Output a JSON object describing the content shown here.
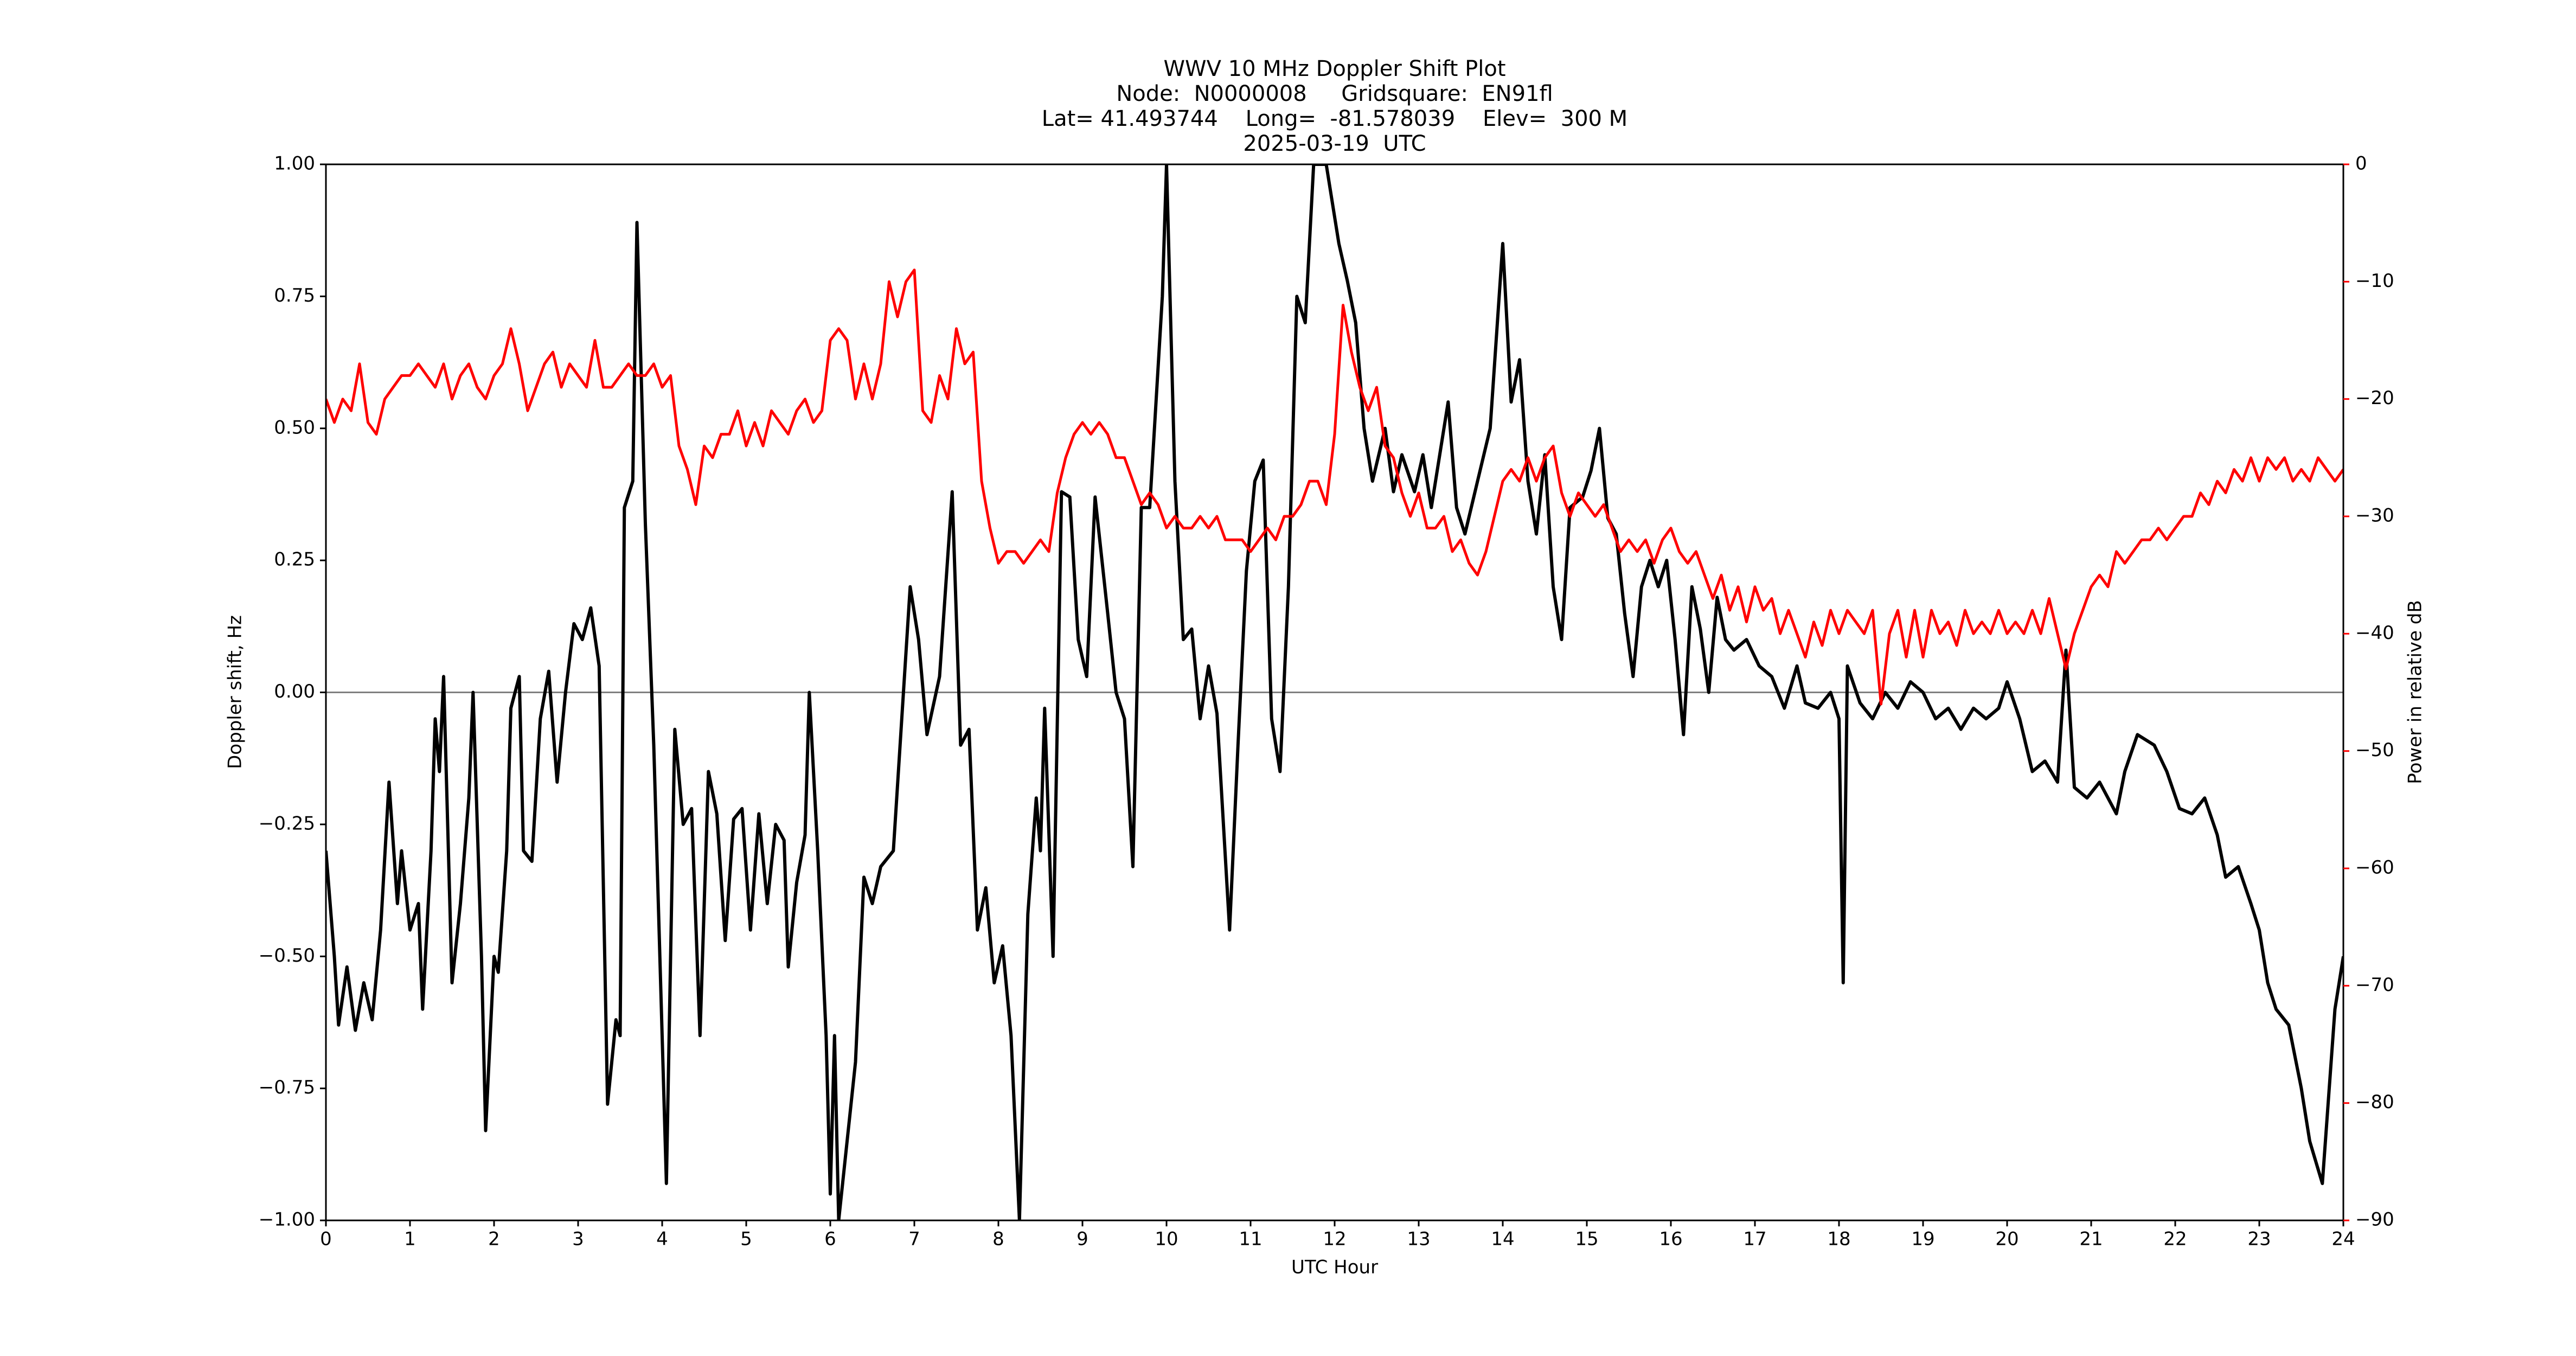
{
  "chart_data": {
    "type": "line",
    "title": "WWV 10 MHz Doppler Shift Plot",
    "subtitle": [
      "Node:  N0000008     Gridsquare:  EN91fl",
      "Lat= 41.493744    Long=  -81.578039    Elev=  300 M",
      "2025-03-19  UTC"
    ],
    "x_label": "UTC Hour",
    "y_label": "Doppler shift, Hz",
    "y2_label": "Power in relative dB",
    "xlim": [
      0,
      24
    ],
    "xticks": [
      0,
      1,
      2,
      3,
      4,
      5,
      6,
      7,
      8,
      9,
      10,
      11,
      12,
      13,
      14,
      15,
      16,
      17,
      18,
      19,
      20,
      21,
      22,
      23,
      24
    ],
    "ylim": [
      -1,
      1
    ],
    "yticks": [
      {
        "value": -1,
        "label": "−1.00"
      },
      {
        "value": -0.75,
        "label": "−0.75"
      },
      {
        "value": -0.5,
        "label": "−0.50"
      },
      {
        "value": -0.25,
        "label": "−0.25"
      },
      {
        "value": 0,
        "label": "0.00"
      },
      {
        "value": 0.25,
        "label": "0.25"
      },
      {
        "value": 0.5,
        "label": "0.50"
      },
      {
        "value": 0.75,
        "label": "0.75"
      },
      {
        "value": 1,
        "label": "1.00"
      }
    ],
    "y2lim": [
      -90,
      0
    ],
    "y2ticks": [
      {
        "value": -90,
        "label": "−90"
      },
      {
        "value": -80,
        "label": "−80"
      },
      {
        "value": -70,
        "label": "−70"
      },
      {
        "value": -60,
        "label": "−60"
      },
      {
        "value": -50,
        "label": "−50"
      },
      {
        "value": -40,
        "label": "−40"
      },
      {
        "value": -30,
        "label": "−30"
      },
      {
        "value": -20,
        "label": "−20"
      },
      {
        "value": -10,
        "label": "−10"
      },
      0
    ],
    "y2_color": "#ff0000",
    "reference_line": 0,
    "grid": false,
    "series": [
      {
        "color": "#000000",
        "x": [
          0,
          0.1,
          0.15,
          0.25,
          0.35,
          0.45,
          0.55,
          0.65,
          0.75,
          0.85,
          0.9,
          1.0,
          1.1,
          1.15,
          1.25,
          1.3,
          1.35,
          1.4,
          1.5,
          1.6,
          1.7,
          1.75,
          1.85,
          1.9,
          2.0,
          2.05,
          2.15,
          2.2,
          2.3,
          2.35,
          2.45,
          2.55,
          2.65,
          2.75,
          2.85,
          2.95,
          3.05,
          3.15,
          3.25,
          3.35,
          3.45,
          3.5,
          3.55,
          3.65,
          3.7,
          3.8,
          3.9,
          4.05,
          4.15,
          4.25,
          4.35,
          4.45,
          4.55,
          4.65,
          4.75,
          4.85,
          4.95,
          5.05,
          5.15,
          5.25,
          5.35,
          5.45,
          5.5,
          5.6,
          5.7,
          5.75,
          5.85,
          5.95,
          6.0,
          6.05,
          6.1,
          6.2,
          6.3,
          6.4,
          6.5,
          6.6,
          6.75,
          6.85,
          6.95,
          7.05,
          7.15,
          7.3,
          7.45,
          7.55,
          7.65,
          7.75,
          7.85,
          7.95,
          8.05,
          8.15,
          8.25,
          8.35,
          8.45,
          8.5,
          8.55,
          8.65,
          8.75,
          8.85,
          8.95,
          9.05,
          9.15,
          9.3,
          9.4,
          9.5,
          9.6,
          9.7,
          9.8,
          9.95,
          10.0,
          10.1,
          10.2,
          10.3,
          10.4,
          10.5,
          10.6,
          10.75,
          10.85,
          10.95,
          11.05,
          11.15,
          11.25,
          11.35,
          11.45,
          11.55,
          11.65,
          11.75,
          11.9,
          12.05,
          12.15,
          12.25,
          12.35,
          12.45,
          12.6,
          12.7,
          12.8,
          12.95,
          13.05,
          13.15,
          13.25,
          13.35,
          13.45,
          13.55,
          13.7,
          13.85,
          14.0,
          14.1,
          14.2,
          14.3,
          14.4,
          14.5,
          14.6,
          14.7,
          14.8,
          14.95,
          15.05,
          15.15,
          15.25,
          15.35,
          15.45,
          15.55,
          15.65,
          15.75,
          15.85,
          15.95,
          16.05,
          16.15,
          16.25,
          16.35,
          16.45,
          16.55,
          16.65,
          16.75,
          16.9,
          17.05,
          17.2,
          17.35,
          17.5,
          17.6,
          17.75,
          17.9,
          18.0,
          18.05,
          18.1,
          18.25,
          18.4,
          18.55,
          18.7,
          18.85,
          19.0,
          19.15,
          19.3,
          19.45,
          19.6,
          19.75,
          19.9,
          20.0,
          20.15,
          20.3,
          20.45,
          20.6,
          20.7,
          20.8,
          20.95,
          21.1,
          21.3,
          21.4,
          21.55,
          21.75,
          21.9,
          22.05,
          22.2,
          22.35,
          22.5,
          22.6,
          22.75,
          22.9,
          23.0,
          23.1,
          23.2,
          23.35,
          23.5,
          23.6,
          23.75,
          23.9,
          24.0
        ],
        "values": [
          -0.3,
          -0.5,
          -0.63,
          -0.52,
          -0.64,
          -0.55,
          -0.62,
          -0.45,
          -0.17,
          -0.4,
          -0.3,
          -0.45,
          -0.4,
          -0.6,
          -0.3,
          -0.05,
          -0.15,
          0.03,
          -0.55,
          -0.4,
          -0.2,
          0.0,
          -0.5,
          -0.83,
          -0.5,
          -0.53,
          -0.3,
          -0.03,
          0.03,
          -0.3,
          -0.32,
          -0.05,
          0.04,
          -0.17,
          0.0,
          0.13,
          0.1,
          0.16,
          0.05,
          -0.78,
          -0.62,
          -0.65,
          0.35,
          0.4,
          0.89,
          0.32,
          -0.1,
          -0.93,
          -0.07,
          -0.25,
          -0.22,
          -0.65,
          -0.15,
          -0.23,
          -0.47,
          -0.24,
          -0.22,
          -0.45,
          -0.23,
          -0.4,
          -0.25,
          -0.28,
          -0.52,
          -0.36,
          -0.27,
          0.0,
          -0.3,
          -0.65,
          -0.95,
          -0.65,
          -1.0,
          -0.85,
          -0.7,
          -0.35,
          -0.4,
          -0.33,
          -0.3,
          -0.05,
          0.2,
          0.1,
          -0.08,
          0.03,
          0.38,
          -0.1,
          -0.07,
          -0.45,
          -0.37,
          -0.55,
          -0.48,
          -0.65,
          -1.0,
          -0.42,
          -0.2,
          -0.3,
          -0.03,
          -0.5,
          0.38,
          0.37,
          0.1,
          0.03,
          0.37,
          0.15,
          0.0,
          -0.05,
          -0.33,
          0.35,
          0.35,
          0.75,
          1.0,
          0.4,
          0.1,
          0.12,
          -0.05,
          0.05,
          -0.04,
          -0.45,
          -0.1,
          0.23,
          0.4,
          0.44,
          -0.05,
          -0.15,
          0.2,
          0.75,
          0.7,
          1.0,
          1.0,
          0.85,
          0.78,
          0.7,
          0.5,
          0.4,
          0.5,
          0.38,
          0.45,
          0.38,
          0.45,
          0.35,
          0.45,
          0.55,
          0.35,
          0.3,
          0.4,
          0.5,
          0.85,
          0.55,
          0.63,
          0.4,
          0.3,
          0.45,
          0.2,
          0.1,
          0.35,
          0.37,
          0.42,
          0.5,
          0.33,
          0.3,
          0.15,
          0.03,
          0.2,
          0.25,
          0.2,
          0.25,
          0.1,
          -0.08,
          0.2,
          0.12,
          0.0,
          0.18,
          0.1,
          0.08,
          0.1,
          0.05,
          0.03,
          -0.03,
          0.05,
          -0.02,
          -0.03,
          0.0,
          -0.05,
          -0.55,
          0.05,
          -0.02,
          -0.05,
          0.0,
          -0.03,
          0.02,
          0.0,
          -0.05,
          -0.03,
          -0.07,
          -0.03,
          -0.05,
          -0.03,
          0.02,
          -0.05,
          -0.15,
          -0.13,
          -0.17,
          0.08,
          -0.18,
          -0.2,
          -0.17,
          -0.23,
          -0.15,
          -0.08,
          -0.1,
          -0.15,
          -0.22,
          -0.23,
          -0.2,
          -0.27,
          -0.35,
          -0.33,
          -0.4,
          -0.45,
          -0.55,
          -0.6,
          -0.63,
          -0.75,
          -0.85,
          -0.93,
          -0.6,
          -0.5
        ]
      },
      {
        "color": "#ff0000",
        "axis": "y2",
        "x": [
          0,
          0.1,
          0.2,
          0.3,
          0.4,
          0.5,
          0.6,
          0.7,
          0.8,
          0.9,
          1,
          1.1,
          1.2,
          1.3,
          1.4,
          1.5,
          1.6,
          1.7,
          1.8,
          1.9,
          2,
          2.1,
          2.2,
          2.3,
          2.4,
          2.5,
          2.6,
          2.7,
          2.8,
          2.9,
          3,
          3.1,
          3.2,
          3.3,
          3.4,
          3.5,
          3.6,
          3.7,
          3.8,
          3.9,
          4,
          4.1,
          4.2,
          4.3,
          4.4,
          4.5,
          4.6,
          4.7,
          4.8,
          4.9,
          5,
          5.1,
          5.2,
          5.3,
          5.4,
          5.5,
          5.6,
          5.7,
          5.8,
          5.9,
          6,
          6.1,
          6.2,
          6.3,
          6.4,
          6.5,
          6.6,
          6.7,
          6.8,
          6.9,
          7,
          7.1,
          7.2,
          7.3,
          7.4,
          7.5,
          7.6,
          7.7,
          7.8,
          7.9,
          8,
          8.1,
          8.2,
          8.3,
          8.4,
          8.5,
          8.6,
          8.7,
          8.8,
          8.9,
          9,
          9.1,
          9.2,
          9.3,
          9.4,
          9.5,
          9.6,
          9.7,
          9.8,
          9.9,
          10,
          10.1,
          10.2,
          10.3,
          10.4,
          10.5,
          10.6,
          10.7,
          10.8,
          10.9,
          11,
          11.1,
          11.2,
          11.3,
          11.4,
          11.5,
          11.6,
          11.7,
          11.8,
          11.9,
          12,
          12.1,
          12.2,
          12.3,
          12.4,
          12.5,
          12.6,
          12.7,
          12.8,
          12.9,
          13,
          13.1,
          13.2,
          13.3,
          13.4,
          13.5,
          13.6,
          13.7,
          13.8,
          13.9,
          14,
          14.1,
          14.2,
          14.3,
          14.4,
          14.5,
          14.6,
          14.7,
          14.8,
          14.9,
          15,
          15.1,
          15.2,
          15.3,
          15.4,
          15.5,
          15.6,
          15.7,
          15.8,
          15.9,
          16,
          16.1,
          16.2,
          16.3,
          16.4,
          16.5,
          16.6,
          16.7,
          16.8,
          16.9,
          17,
          17.1,
          17.2,
          17.3,
          17.4,
          17.5,
          17.6,
          17.7,
          17.8,
          17.9,
          18,
          18.1,
          18.2,
          18.3,
          18.4,
          18.5,
          18.6,
          18.7,
          18.8,
          18.9,
          19,
          19.1,
          19.2,
          19.3,
          19.4,
          19.5,
          19.6,
          19.7,
          19.8,
          19.9,
          20,
          20.1,
          20.2,
          20.3,
          20.4,
          20.5,
          20.6,
          20.7,
          20.8,
          20.9,
          21,
          21.1,
          21.2,
          21.3,
          21.4,
          21.5,
          21.6,
          21.7,
          21.8,
          21.9,
          22,
          22.1,
          22.2,
          22.3,
          22.4,
          22.5,
          22.6,
          22.7,
          22.8,
          22.9,
          23,
          23.1,
          23.2,
          23.3,
          23.4,
          23.5,
          23.6,
          23.7,
          23.8,
          23.9,
          24
        ],
        "values": [
          -20,
          -22,
          -20,
          -21,
          -17,
          -22,
          -23,
          -20,
          -19,
          -18,
          -18,
          -17,
          -18,
          -19,
          -17,
          -20,
          -18,
          -17,
          -19,
          -20,
          -18,
          -17,
          -14,
          -17,
          -21,
          -19,
          -17,
          -16,
          -19,
          -17,
          -18,
          -19,
          -15,
          -19,
          -19,
          -18,
          -17,
          -18,
          -18,
          -17,
          -19,
          -18,
          -24,
          -26,
          -29,
          -24,
          -25,
          -23,
          -23,
          -21,
          -24,
          -22,
          -24,
          -21,
          -22,
          -23,
          -21,
          -20,
          -22,
          -21,
          -15,
          -14,
          -15,
          -20,
          -17,
          -20,
          -17,
          -10,
          -13,
          -10,
          -9,
          -21,
          -22,
          -18,
          -20,
          -14,
          -17,
          -16,
          -27,
          -31,
          -34,
          -33,
          -33,
          -34,
          -33,
          -32,
          -33,
          -28,
          -25,
          -23,
          -22,
          -23,
          -22,
          -23,
          -25,
          -25,
          -27,
          -29,
          -28,
          -29,
          -31,
          -30,
          -31,
          -31,
          -30,
          -31,
          -30,
          -32,
          -32,
          -32,
          -33,
          -32,
          -31,
          -32,
          -30,
          -30,
          -29,
          -27,
          -27,
          -29,
          -23,
          -12,
          -16,
          -19,
          -21,
          -19,
          -24,
          -25,
          -28,
          -30,
          -28,
          -31,
          -31,
          -30,
          -33,
          -32,
          -34,
          -35,
          -33,
          -30,
          -27,
          -26,
          -27,
          -25,
          -27,
          -25,
          -24,
          -28,
          -30,
          -28,
          -29,
          -30,
          -29,
          -31,
          -33,
          -32,
          -33,
          -32,
          -34,
          -32,
          -31,
          -33,
          -34,
          -33,
          -35,
          -37,
          -35,
          -38,
          -36,
          -39,
          -36,
          -38,
          -37,
          -40,
          -38,
          -40,
          -42,
          -39,
          -41,
          -38,
          -40,
          -38,
          -39,
          -40,
          -38,
          -46,
          -40,
          -38,
          -42,
          -38,
          -42,
          -38,
          -40,
          -39,
          -41,
          -38,
          -40,
          -39,
          -40,
          -38,
          -40,
          -39,
          -40,
          -38,
          -40,
          -37,
          -40,
          -43,
          -40,
          -38,
          -36,
          -35,
          -36,
          -33,
          -34,
          -33,
          -32,
          -32,
          -31,
          -32,
          -31,
          -30,
          -30,
          -28,
          -29,
          -27,
          -28,
          -26,
          -27,
          -25,
          -27,
          -25,
          -26,
          -25,
          -27,
          -26,
          -27,
          -25,
          -26,
          -27,
          -26
        ]
      }
    ]
  }
}
